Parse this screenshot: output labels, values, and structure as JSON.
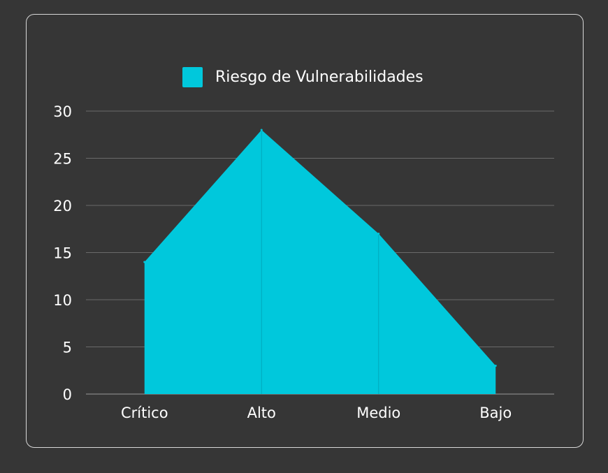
{
  "chart_data": {
    "type": "area",
    "categories": [
      "Crítico",
      "Alto",
      "Medio",
      "Bajo"
    ],
    "series": [
      {
        "name": "Riesgo de Vulnerabilidades",
        "values": [
          14,
          28,
          17,
          3
        ],
        "color": "#00c8dc"
      }
    ],
    "yticks": [
      0,
      5,
      10,
      15,
      20,
      25,
      30
    ],
    "ylim": [
      0,
      30
    ],
    "grid": true,
    "legend_position": "top-center",
    "title": "",
    "xlabel": "",
    "ylabel": ""
  },
  "colors": {
    "background": "#363636",
    "card_border": "#d8d8d8",
    "grid": "#6a6a6a",
    "text": "#ffffff",
    "series": "#00c8dc"
  }
}
